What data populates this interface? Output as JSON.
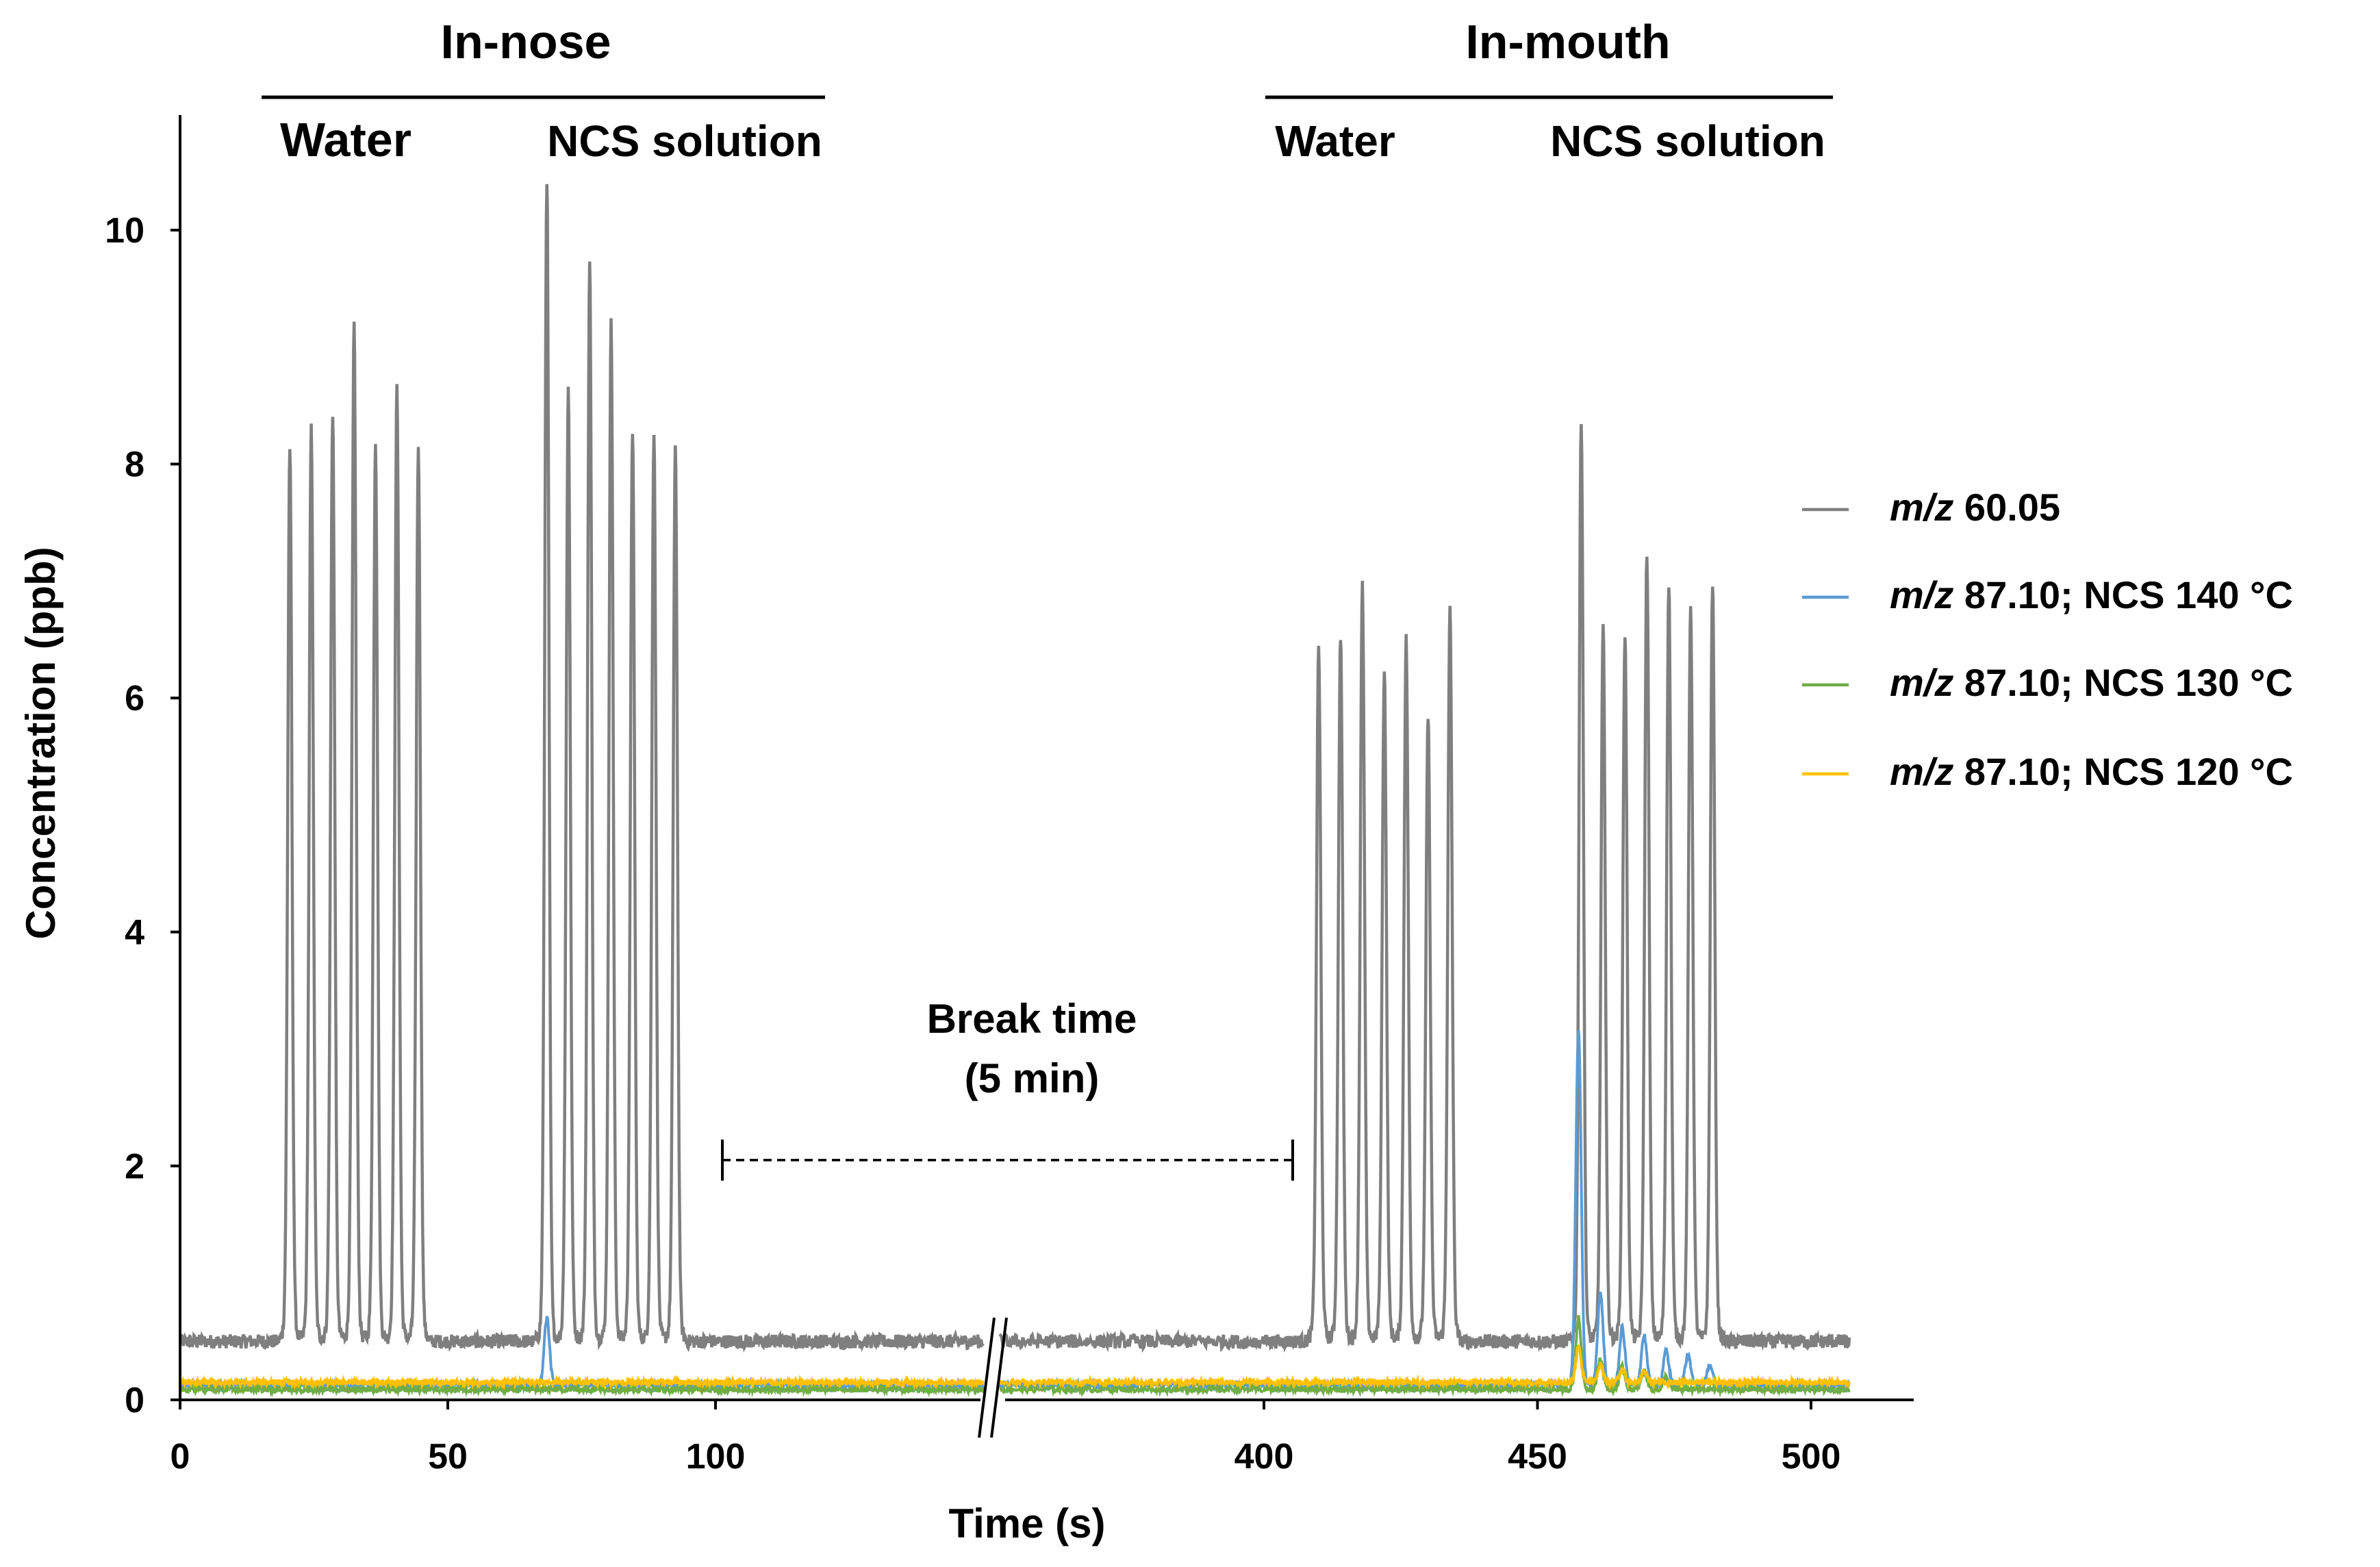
{
  "chart_data": {
    "type": "line",
    "title": "",
    "xlabel": "Time (s)",
    "ylabel": "Concentration (ppb)",
    "ylim": [
      0,
      11
    ],
    "x_axis_break": {
      "from": 150,
      "to": 350
    },
    "x_ticks": [
      0,
      50,
      100,
      400,
      450,
      500
    ],
    "y_ticks": [
      0,
      2,
      4,
      6,
      8,
      10
    ],
    "headers": [
      {
        "label": "In-nose",
        "x_range": [
          15,
          120
        ]
      },
      {
        "label": "In-mouth",
        "x_range": [
          401,
          507
        ]
      }
    ],
    "sub_headers": [
      {
        "label": "Water",
        "x": 30
      },
      {
        "label": "NCS solution",
        "x": 93
      },
      {
        "label": "Water",
        "x": 413
      },
      {
        "label": "NCS solution",
        "x": 478
      }
    ],
    "annotation": {
      "line1": "Break time",
      "line2": "(5 min)",
      "x_from": 100,
      "x_to": 405,
      "y": 2.05
    },
    "legend_position": "right",
    "series": [
      {
        "name": "m/z 60.05",
        "name_italic": "m/z",
        "name_rest": " 60.05",
        "color": "#7f7f7f",
        "baseline": 0.5,
        "peaks": [
          {
            "x": 20.5,
            "y": 7.9
          },
          {
            "x": 24.5,
            "y": 8.05
          },
          {
            "x": 28.5,
            "y": 8.2
          },
          {
            "x": 32.5,
            "y": 8.95
          },
          {
            "x": 36.5,
            "y": 7.95
          },
          {
            "x": 40.5,
            "y": 8.4
          },
          {
            "x": 44.5,
            "y": 7.9
          },
          {
            "x": 68.5,
            "y": 10.2
          },
          {
            "x": 72.5,
            "y": 8.4
          },
          {
            "x": 76.5,
            "y": 9.5
          },
          {
            "x": 80.5,
            "y": 8.95
          },
          {
            "x": 84.5,
            "y": 8.05
          },
          {
            "x": 88.5,
            "y": 8.05
          },
          {
            "x": 92.5,
            "y": 7.9
          },
          {
            "x": 410,
            "y": 6.2
          },
          {
            "x": 414,
            "y": 6.3
          },
          {
            "x": 418,
            "y": 6.7
          },
          {
            "x": 422,
            "y": 6.0
          },
          {
            "x": 426,
            "y": 6.25
          },
          {
            "x": 430,
            "y": 5.6
          },
          {
            "x": 434,
            "y": 6.5
          },
          {
            "x": 458,
            "y": 8.15
          },
          {
            "x": 462,
            "y": 6.35
          },
          {
            "x": 466,
            "y": 6.3
          },
          {
            "x": 470,
            "y": 7.0
          },
          {
            "x": 474,
            "y": 6.75
          },
          {
            "x": 478,
            "y": 6.55
          },
          {
            "x": 482,
            "y": 6.75
          }
        ]
      },
      {
        "name": "m/z 87.10; NCS 140 °C",
        "name_italic": "m/z",
        "name_rest": " 87.10; NCS 140 °C",
        "color": "#5b9bd5",
        "baseline": 0.13,
        "peaks": [
          {
            "x": 68.5,
            "y": 0.7
          },
          {
            "x": 457.5,
            "y": 3.15
          },
          {
            "x": 461.5,
            "y": 0.92
          },
          {
            "x": 465.5,
            "y": 0.62
          },
          {
            "x": 469.5,
            "y": 0.55
          },
          {
            "x": 473.5,
            "y": 0.42
          },
          {
            "x": 477.5,
            "y": 0.38
          },
          {
            "x": 481.5,
            "y": 0.3
          }
        ]
      },
      {
        "name": "m/z 87.10; NCS 130 °C",
        "name_italic": "m/z",
        "name_rest": " 87.10; NCS 130 °C",
        "color": "#70ad47",
        "baseline": 0.09,
        "peaks": [
          {
            "x": 457.5,
            "y": 0.7
          },
          {
            "x": 461.5,
            "y": 0.35
          },
          {
            "x": 465.5,
            "y": 0.28
          },
          {
            "x": 469.5,
            "y": 0.25
          },
          {
            "x": 473.5,
            "y": 0.2
          }
        ]
      },
      {
        "name": "m/z 87.10; NCS 120 °C",
        "name_italic": "m/z",
        "name_rest": " 87.10; NCS 120 °C",
        "color": "#ffc000",
        "baseline": 0.15,
        "peaks": [
          {
            "x": 457.5,
            "y": 0.45
          },
          {
            "x": 461.5,
            "y": 0.3
          },
          {
            "x": 465.5,
            "y": 0.26
          },
          {
            "x": 469.5,
            "y": 0.24
          }
        ]
      }
    ]
  }
}
